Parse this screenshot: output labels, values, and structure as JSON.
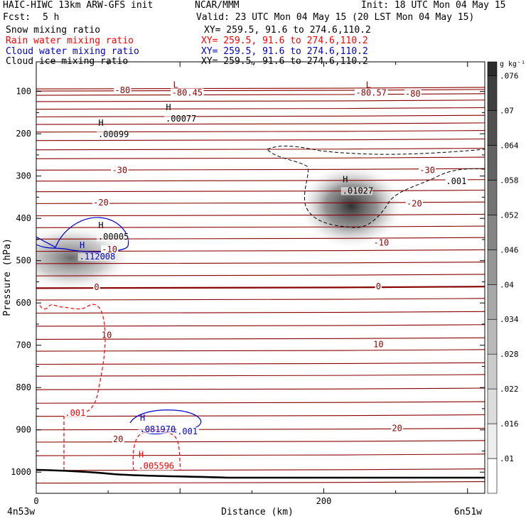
{
  "header": {
    "model": "HAIC-HIWC 13km ARW-GFS init",
    "org": "NCAR/MMM",
    "init": "Init: 18 UTC Mon 04 May 15",
    "fcst_label": "Fcst:",
    "fcst_value": "5 h",
    "valid": "Valid: 23 UTC Mon 04 May 15 (20 LST Mon 04 May 15)"
  },
  "fields": [
    {
      "name": "Snow mixing ratio",
      "xy": "XY= 259.5, 91.6 to 274.6,110.2",
      "color": "#000000"
    },
    {
      "name": "Rain water mixing ratio",
      "xy": "XY= 259.5, 91.6 to 274.6,110.2",
      "color": "#ff0000"
    },
    {
      "name": "Cloud water mixing ratio",
      "xy": "XY= 259.5, 91.6 to 274.6,110.2",
      "color": "#0000cc"
    },
    {
      "name": "Cloud ice mixing ratio",
      "xy": "XY= 259.5, 91.6 to 274.6,110.2",
      "color": "#000000"
    }
  ],
  "chart_data": {
    "type": "contour",
    "xlabel": "Distance (km)",
    "ylabel": "Pressure (hPa)",
    "xlim": [
      0,
      312
    ],
    "ylim": [
      1050,
      30
    ],
    "x_ticks": [
      0,
      200
    ],
    "y_ticks": [
      100,
      200,
      300,
      400,
      500,
      600,
      700,
      800,
      900,
      1000
    ],
    "x_endpoint_labels": [
      "4n53w",
      "6n51w"
    ],
    "colorbar": {
      "unit": "g kg⁻¹",
      "ticks": [
        ".01",
        ".016",
        ".022",
        ".028",
        ".034",
        ".04",
        ".046",
        ".052",
        ".058",
        ".064",
        ".07",
        ".076"
      ]
    },
    "temperature_contours": {
      "color": "#8b0000",
      "labels": [
        {
          "text": "-80",
          "x": 60,
          "p": 97
        },
        {
          "text": "-80.45",
          "x": 105,
          "p": 103
        },
        {
          "text": "-80.57",
          "x": 233,
          "p": 103
        },
        {
          "text": "-80",
          "x": 262,
          "p": 106
        },
        {
          "text": "-30",
          "x": 58,
          "p": 286
        },
        {
          "text": "-30",
          "x": 272,
          "p": 286
        },
        {
          "text": "-20",
          "x": 45,
          "p": 363
        },
        {
          "text": "-20",
          "x": 263,
          "p": 365
        },
        {
          "text": "-10",
          "x": 51,
          "p": 474
        },
        {
          "text": "-10",
          "x": 240,
          "p": 458
        },
        {
          "text": "0",
          "x": 42,
          "p": 563
        },
        {
          "text": "0",
          "x": 238,
          "p": 561
        },
        {
          "text": "10",
          "x": 49,
          "p": 676
        },
        {
          "text": "10",
          "x": 238,
          "p": 698
        },
        {
          "text": "20",
          "x": 57,
          "p": 922
        },
        {
          "text": "20",
          "x": 251,
          "p": 896
        }
      ],
      "maxima": [
        {
          "text": "L",
          "x": 97,
          "p": 85
        },
        {
          "text": "L",
          "x": 231,
          "p": 85
        }
      ]
    },
    "extrema": [
      {
        "mark": "H",
        "value": ".00077",
        "x": 90,
        "p": 158,
        "color": "#000000"
      },
      {
        "mark": "H",
        "value": ".00099",
        "x": 43,
        "p": 195,
        "color": "#000000"
      },
      {
        "mark": "H",
        "value": ".01027",
        "x": 213,
        "p": 328,
        "color": "#000000"
      },
      {
        "mark": "H",
        "value": ".00005",
        "x": 43,
        "p": 437,
        "color": "#000000"
      },
      {
        "mark": "H",
        "value": ".112008",
        "x": 30,
        "p": 484,
        "color": "#0000cc"
      },
      {
        "mark": "H",
        "value": ".081970",
        "x": 72,
        "p": 892,
        "color": "#0000cc"
      },
      {
        "mark": "H",
        "value": ".005596",
        "x": 71,
        "p": 979,
        "color": "#ff0000"
      }
    ],
    "contour_labels": [
      {
        "text": ".001",
        "x": 285,
        "p": 312,
        "color": "#000000"
      },
      {
        "text": ".001",
        "x": 98,
        "p": 904,
        "color": "#0000cc"
      },
      {
        "text": ".001",
        "x": 20,
        "p": 860,
        "color": "#ff0000"
      }
    ]
  }
}
